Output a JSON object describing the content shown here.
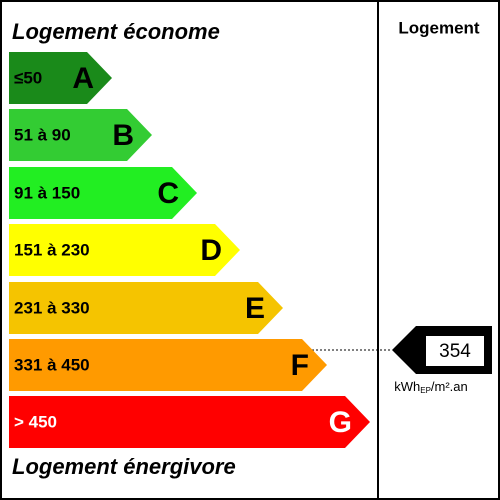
{
  "header": {
    "title": "Logement économe",
    "column": "Logement"
  },
  "classes": [
    {
      "label": "≤50",
      "letter": "A",
      "color": "#1a8a1a",
      "text": "#000000"
    },
    {
      "label": "51 à 90",
      "letter": "B",
      "color": "#33cc33",
      "text": "#000000"
    },
    {
      "label": "91 à 150",
      "letter": "C",
      "color": "#22ee22",
      "text": "#000000"
    },
    {
      "label": "151 à 230",
      "letter": "D",
      "color": "#ffff00",
      "text": "#000000"
    },
    {
      "label": "231 à 330",
      "letter": "E",
      "color": "#f5c400",
      "text": "#000000"
    },
    {
      "label": "331 à 450",
      "letter": "F",
      "color": "#ff9a00",
      "text": "#000000"
    },
    {
      "label": "> 450",
      "letter": "G",
      "color": "#ff0000",
      "text": "#ffffff"
    }
  ],
  "footer": {
    "title": "Logement énergivore"
  },
  "indicator": {
    "value": "354",
    "unit": {
      "prefix": "kWh",
      "sub": "EP",
      "suffix": "/m².an"
    }
  }
}
